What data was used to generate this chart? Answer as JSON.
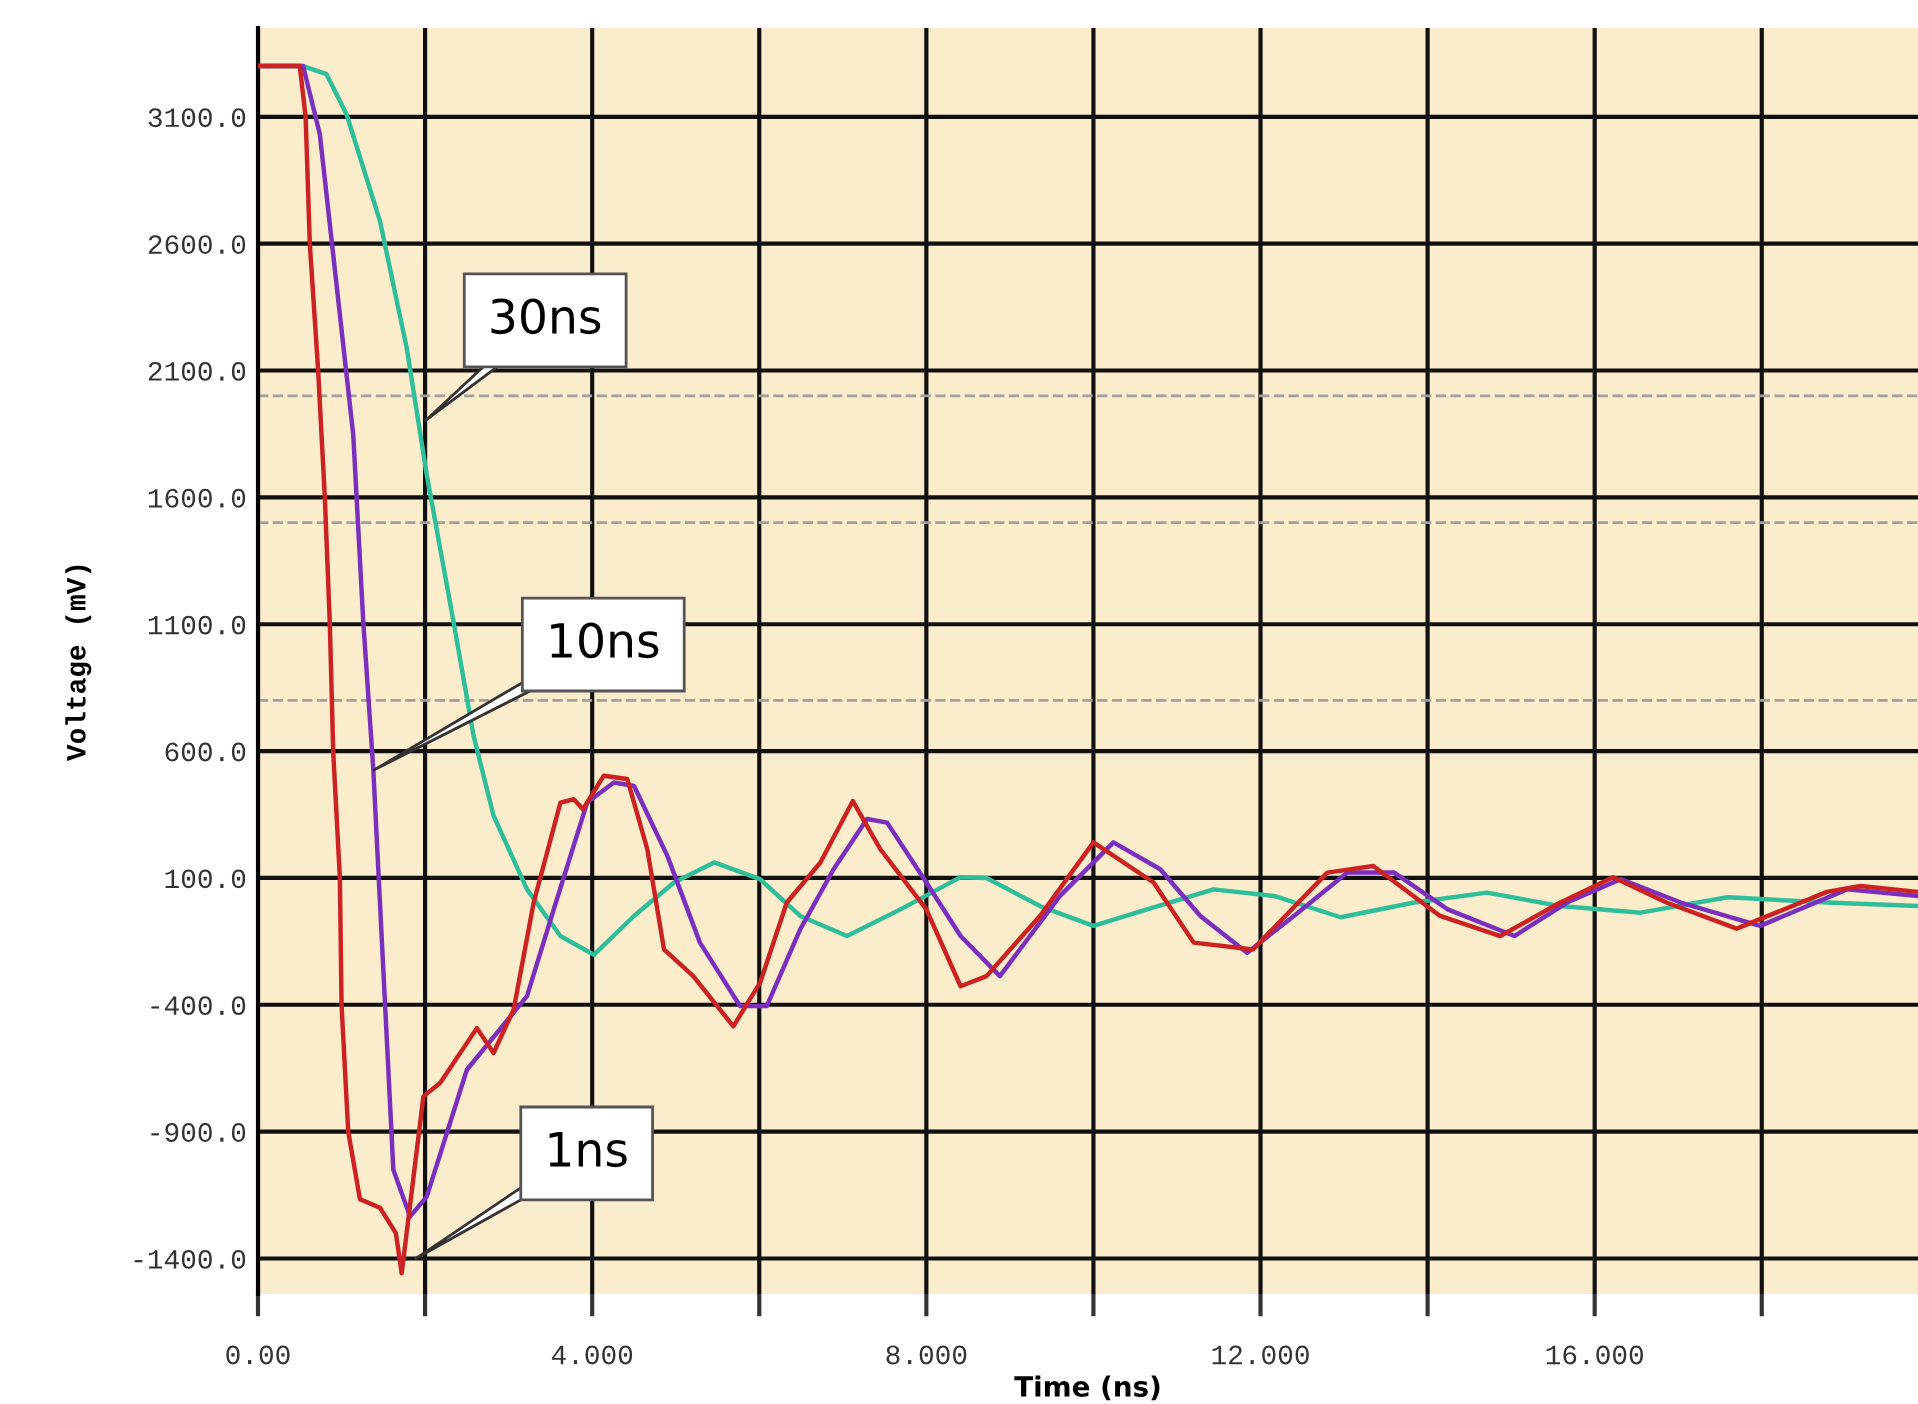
{
  "chart_data": {
    "type": "line",
    "xlabel": "Time (ns)",
    "ylabel": "Voltage (mV)",
    "xlim": [
      0,
      19.87
    ],
    "ylim": [
      -1540,
      3450
    ],
    "xticks": [
      {
        "value": 0,
        "label": "0.00"
      },
      {
        "value": 2,
        "label": null
      },
      {
        "value": 4,
        "label": "4.000"
      },
      {
        "value": 6,
        "label": null
      },
      {
        "value": 8,
        "label": "8.000"
      },
      {
        "value": 10,
        "label": null
      },
      {
        "value": 12,
        "label": "12.000"
      },
      {
        "value": 14,
        "label": null
      },
      {
        "value": 16,
        "label": "16.000"
      },
      {
        "value": 18,
        "label": null
      }
    ],
    "yticks": [
      {
        "value": 3100,
        "label": "3100.0"
      },
      {
        "value": 2600,
        "label": "2600.0"
      },
      {
        "value": 2100,
        "label": "2100.0"
      },
      {
        "value": 1600,
        "label": "1600.0"
      },
      {
        "value": 1100,
        "label": "1100.0"
      },
      {
        "value": 600,
        "label": "600.0"
      },
      {
        "value": 100,
        "label": "100.0"
      },
      {
        "value": -400,
        "label": "-400.0"
      },
      {
        "value": -900,
        "label": "-900.0"
      },
      {
        "value": -1400,
        "label": "-1400.0"
      }
    ],
    "grid": true,
    "marker": "none",
    "line_style": "solid",
    "ref_lines": [
      {
        "axis": "y",
        "value": 2000,
        "color": "#a0a0a0",
        "line_style": "dashed"
      },
      {
        "axis": "y",
        "value": 1500,
        "color": "#a0a0a0",
        "line_style": "dashed"
      },
      {
        "axis": "y",
        "value": 800,
        "color": "#a0a0a0",
        "line_style": "dashed"
      }
    ],
    "annotations": [
      "30ns",
      "10ns",
      "1ns"
    ],
    "series": [
      {
        "color": "#2ebf9a",
        "x": [
          0,
          0.54,
          0.82,
          1.06,
          1.46,
          1.78,
          2.02,
          2.34,
          2.58,
          2.82,
          3.22,
          3.62,
          4.02,
          4.5,
          4.98,
          5.46,
          6.01,
          6.49,
          7.05,
          7.69,
          8.41,
          8.72,
          9.36,
          10.0,
          10.64,
          11.44,
          12.16,
          12.96,
          13.84,
          14.71,
          15.59,
          16.55,
          17.59,
          18.78,
          19.87
        ],
        "values": [
          3300,
          3300,
          3268,
          3110,
          2689,
          2189,
          1689,
          1110,
          661,
          345,
          55,
          -129,
          -203,
          -50,
          82,
          161,
          95,
          -50,
          -129,
          -24,
          103,
          100,
          -11,
          -89,
          -24,
          55,
          29,
          -55,
          3,
          42,
          -11,
          -37,
          24,
          3,
          -11
        ]
      },
      {
        "color": "#7b2fbe",
        "x": [
          0,
          0.54,
          0.74,
          0.9,
          1.06,
          1.14,
          1.26,
          1.38,
          1.5,
          1.62,
          1.82,
          2.02,
          2.5,
          3.22,
          3.54,
          3.94,
          4.26,
          4.5,
          4.9,
          5.29,
          5.77,
          6.09,
          6.49,
          6.89,
          7.29,
          7.53,
          8.0,
          8.41,
          8.88,
          9.6,
          10.24,
          10.8,
          11.28,
          11.84,
          12.4,
          13.04,
          13.6,
          14.24,
          15.04,
          15.67,
          16.31,
          17.03,
          17.98,
          19.02,
          19.87
        ],
        "values": [
          3300,
          3300,
          3031,
          2557,
          2083,
          1847,
          1110,
          529,
          -261,
          -1050,
          -1235,
          -1156,
          -656,
          -366,
          -24,
          397,
          476,
          463,
          187,
          -155,
          -405,
          -405,
          -103,
          134,
          332,
          318,
          82,
          -129,
          -287,
          29,
          240,
          134,
          -50,
          -195,
          -50,
          121,
          121,
          -24,
          -129,
          3,
          95,
          3,
          -89,
          55,
          29
        ]
      },
      {
        "color": "#cc2222",
        "x": [
          0,
          0.5,
          0.57,
          0.62,
          0.72,
          0.8,
          0.86,
          0.9,
          0.98,
          1.0,
          1.08,
          1.22,
          1.46,
          1.65,
          1.72,
          1.98,
          2.18,
          2.62,
          2.82,
          3.06,
          3.3,
          3.62,
          3.78,
          3.89,
          4.14,
          4.42,
          4.66,
          4.86,
          5.21,
          5.69,
          6.01,
          6.33,
          6.73,
          7.12,
          7.45,
          8.0,
          8.41,
          8.72,
          9.36,
          10.0,
          10.72,
          11.2,
          11.91,
          12.8,
          13.35,
          14.15,
          14.87,
          15.59,
          16.22,
          16.86,
          17.7,
          18.78,
          19.18,
          19.87
        ],
        "values": [
          3300,
          3300,
          3100,
          2600,
          2100,
          1600,
          1100,
          600,
          100,
          -400,
          -900,
          -1166,
          -1200,
          -1300,
          -1458,
          -761,
          -708,
          -492,
          -590,
          -419,
          3,
          397,
          410,
          371,
          503,
          490,
          213,
          -182,
          -287,
          -485,
          -313,
          3,
          160,
          403,
          213,
          -24,
          -327,
          -287,
          -50,
          240,
          82,
          -155,
          -182,
          121,
          147,
          -50,
          -129,
          3,
          103,
          3,
          -100,
          45,
          68,
          45
        ]
      }
    ]
  }
}
